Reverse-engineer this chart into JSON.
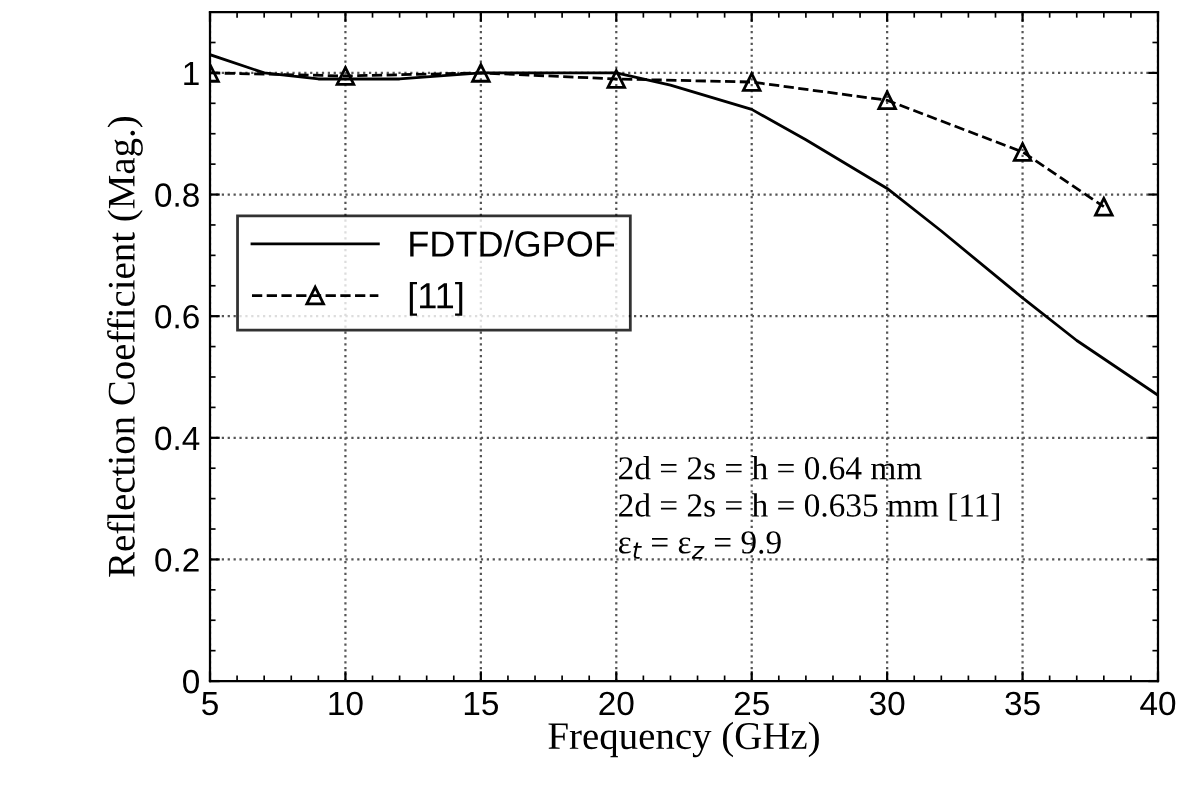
{
  "chart_data": {
    "type": "line",
    "xlabel": "Frequency (GHz)",
    "ylabel": "Reflection Coefficient (Mag.)",
    "xlim": [
      5,
      40
    ],
    "xticks": [
      5,
      10,
      15,
      20,
      25,
      30,
      35,
      40
    ],
    "ylim": [
      0,
      1.1
    ],
    "yticks": [
      0,
      0.2,
      0.4,
      0.6,
      0.8,
      1
    ],
    "grid": true,
    "legend": "left",
    "series": [
      {
        "name": "FDTD/GPOF",
        "color": "#000000",
        "line_style": "solid",
        "marker": "none",
        "x": [
          5,
          7,
          9,
          12,
          15,
          18,
          20,
          22,
          25,
          27,
          30,
          32,
          35,
          37,
          40
        ],
        "values": [
          1.03,
          1.0,
          0.99,
          0.99,
          1.0,
          1.0,
          1.0,
          0.98,
          0.94,
          0.89,
          0.81,
          0.74,
          0.63,
          0.56,
          0.47
        ]
      },
      {
        "name": "[11]",
        "color": "#000000",
        "line_style": "dashed",
        "marker": "triangle",
        "x": [
          5,
          10,
          15,
          20,
          25,
          30,
          35,
          38
        ],
        "values": [
          1.0,
          0.995,
          1.0,
          0.99,
          0.985,
          0.955,
          0.87,
          0.78
        ]
      }
    ],
    "annotations": [
      "2d = 2s = h = 0.64 mm\n2d = 2s = h = 0.635 mm [11]\nε$_{t}$ = ε$_{z}$ = 9.9"
    ]
  }
}
